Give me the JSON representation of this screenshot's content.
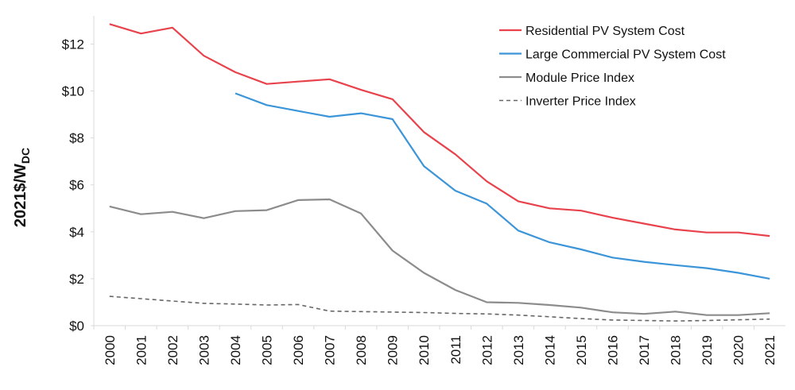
{
  "chart_data": {
    "type": "line",
    "title": "",
    "xlabel": "",
    "ylabel": {
      "main": "2021$/W",
      "sub": "DC"
    },
    "ylim": [
      0,
      13.2
    ],
    "y_ticks": [
      {
        "value": 0,
        "label": "$0"
      },
      {
        "value": 2,
        "label": "$2"
      },
      {
        "value": 4,
        "label": "$4"
      },
      {
        "value": 6,
        "label": "$6"
      },
      {
        "value": 8,
        "label": "$8"
      },
      {
        "value": 10,
        "label": "$10"
      },
      {
        "value": 12,
        "label": "$12"
      }
    ],
    "categories": [
      "2000",
      "2001",
      "2002",
      "2003",
      "2004",
      "2005",
      "2006",
      "2007",
      "2008",
      "2009",
      "2010",
      "2011",
      "2012",
      "2013",
      "2014",
      "2015",
      "2016",
      "2017",
      "2018",
      "2019",
      "2020",
      "2021"
    ],
    "grid": false,
    "legend_position": "top-right",
    "series": [
      {
        "name": "Residential PV System Cost",
        "color": "#e8434d",
        "style": "solid",
        "values": [
          12.85,
          12.45,
          12.7,
          11.5,
          10.8,
          10.3,
          10.4,
          10.5,
          10.05,
          9.65,
          8.25,
          7.3,
          6.15,
          5.3,
          5.0,
          4.9,
          4.6,
          4.35,
          4.1,
          3.97,
          3.97,
          3.82
        ]
      },
      {
        "name": "Large Commercial PV System Cost",
        "color": "#3b95d8",
        "style": "solid",
        "values": [
          null,
          null,
          null,
          null,
          9.9,
          9.4,
          9.15,
          8.9,
          9.05,
          8.8,
          6.8,
          5.75,
          5.2,
          4.05,
          3.55,
          3.25,
          2.9,
          2.72,
          2.58,
          2.45,
          2.25,
          2.0
        ]
      },
      {
        "name": "Module Price Index",
        "color": "#8c8c8c",
        "style": "solid",
        "values": [
          5.08,
          4.75,
          4.85,
          4.58,
          4.88,
          4.92,
          5.35,
          5.38,
          4.78,
          3.2,
          2.25,
          1.52,
          1.0,
          0.97,
          0.88,
          0.77,
          0.57,
          0.5,
          0.6,
          0.45,
          0.45,
          0.53
        ]
      },
      {
        "name": "Inverter Price Index",
        "color": "#666666",
        "style": "dashed",
        "values": [
          1.25,
          1.15,
          1.05,
          0.95,
          0.92,
          0.88,
          0.9,
          0.62,
          0.6,
          0.58,
          0.56,
          0.52,
          0.5,
          0.45,
          0.38,
          0.3,
          0.24,
          0.22,
          0.2,
          0.22,
          0.25,
          0.28
        ]
      }
    ]
  }
}
